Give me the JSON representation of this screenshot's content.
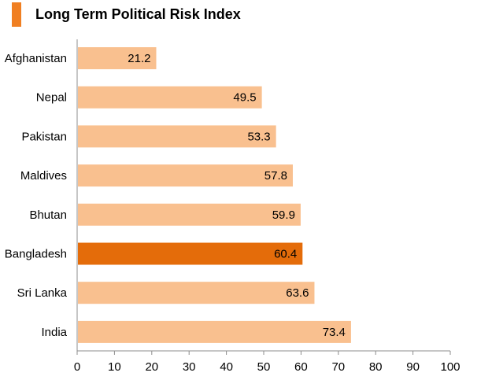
{
  "chart_data": {
    "type": "bar",
    "orientation": "horizontal",
    "title": "Long Term Political Risk Index",
    "categories": [
      "Afghanistan",
      "Nepal",
      "Pakistan",
      "Maldives",
      "Bhutan",
      "Bangladesh",
      "Sri Lanka",
      "India"
    ],
    "values": [
      21.2,
      49.5,
      53.3,
      57.8,
      59.9,
      60.4,
      63.6,
      73.4
    ],
    "value_labels": [
      "21.2",
      "49.5",
      "53.3",
      "57.8",
      "59.9",
      "60.4",
      "63.6",
      "73.4"
    ],
    "highlight": "Bangladesh",
    "xlim": [
      0,
      100
    ],
    "x_ticks": [
      0,
      10,
      20,
      30,
      40,
      50,
      60,
      70,
      80,
      90,
      100
    ],
    "xlabel": "",
    "ylabel": "",
    "grid": false,
    "legend": "none"
  },
  "colors": {
    "bar": "#f9c08f",
    "highlight_bar": "#e46c0a",
    "title_marker": "#f07f22",
    "axis": "#8c8c8c"
  }
}
